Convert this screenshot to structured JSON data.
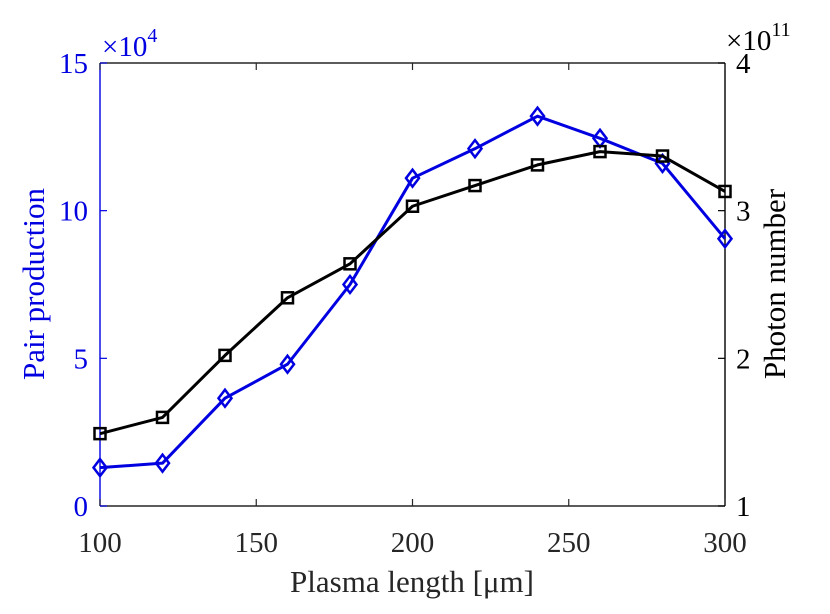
{
  "chart_data": {
    "type": "line",
    "xlabel": "Plasma length [μm]",
    "ylabel_left": "Pair production",
    "ylabel_right": "Photon number",
    "left_exponent_label": "×10",
    "left_exponent_power": "4",
    "right_exponent_label": "×10",
    "right_exponent_power": "11",
    "xlim": [
      100,
      300
    ],
    "ylim_left": [
      0,
      15
    ],
    "ylim_right": [
      1,
      4
    ],
    "x_ticks": [
      {
        "value": 100,
        "label": "100"
      },
      {
        "value": 150,
        "label": "150"
      },
      {
        "value": 200,
        "label": "200"
      },
      {
        "value": 250,
        "label": "250"
      },
      {
        "value": 300,
        "label": "300"
      }
    ],
    "y_left_ticks": [
      {
        "value": 0,
        "label": "0"
      },
      {
        "value": 5,
        "label": "5"
      },
      {
        "value": 10,
        "label": "10"
      },
      {
        "value": 15,
        "label": "15"
      }
    ],
    "y_right_ticks": [
      {
        "value": 1,
        "label": "1"
      },
      {
        "value": 2,
        "label": "2"
      },
      {
        "value": 3,
        "label": "3"
      },
      {
        "value": 4,
        "label": "4"
      }
    ],
    "x": [
      100,
      120,
      140,
      160,
      180,
      200,
      220,
      240,
      260,
      280,
      300
    ],
    "series": [
      {
        "name": "Pair production",
        "axis": "left",
        "color": "#0000e0",
        "marker": "diamond",
        "values": [
          1.3,
          1.45,
          3.65,
          4.8,
          7.5,
          11.1,
          12.1,
          13.2,
          12.45,
          11.6,
          9.05
        ]
      },
      {
        "name": "Photon number",
        "axis": "right",
        "color": "#000000",
        "marker": "square",
        "values": [
          1.49,
          1.6,
          2.02,
          2.41,
          2.64,
          3.03,
          3.17,
          3.31,
          3.4,
          3.37,
          3.13
        ]
      }
    ],
    "left_axis_color": "#0000e0",
    "right_axis_color": "#000000"
  }
}
